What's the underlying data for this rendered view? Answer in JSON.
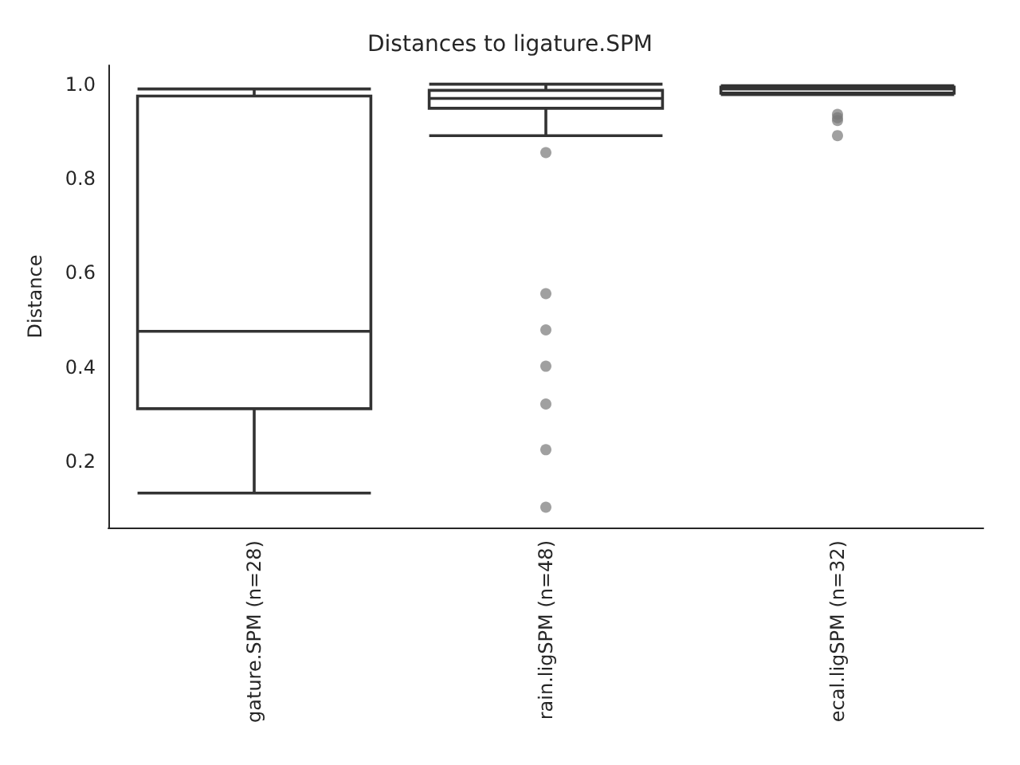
{
  "chart_data": {
    "type": "box",
    "title": "Distances to ligature.SPM",
    "ylabel": "Distance",
    "categories": [
      "gature.SPM (n=28)",
      "rain.ligSPM (n=48)",
      "ecal.ligSPM (n=32)"
    ],
    "color": "#ffffff",
    "boxes": [
      {
        "low": 0.133,
        "q1": 0.312,
        "median": 0.476,
        "q3": 0.975,
        "high": 0.99
      },
      {
        "low": 0.891,
        "q1": 0.949,
        "median": 0.97,
        "q3": 0.987,
        "high": 1.0,
        "outliers": [
          0.855,
          0.556,
          0.479,
          0.402,
          0.322,
          0.225,
          0.103
        ]
      },
      {
        "low": 0.978,
        "q1": 0.981,
        "median": 0.99,
        "q3": 0.994,
        "high": 0.997,
        "outliers": [
          0.936,
          0.929,
          0.923,
          0.891
        ]
      }
    ],
    "ylim": [
      0.06,
      1.04
    ],
    "yticks": [
      0.2,
      0.4,
      0.6,
      0.8,
      {
        "value": 1,
        "label": "1.0"
      }
    ],
    "grid": false
  }
}
